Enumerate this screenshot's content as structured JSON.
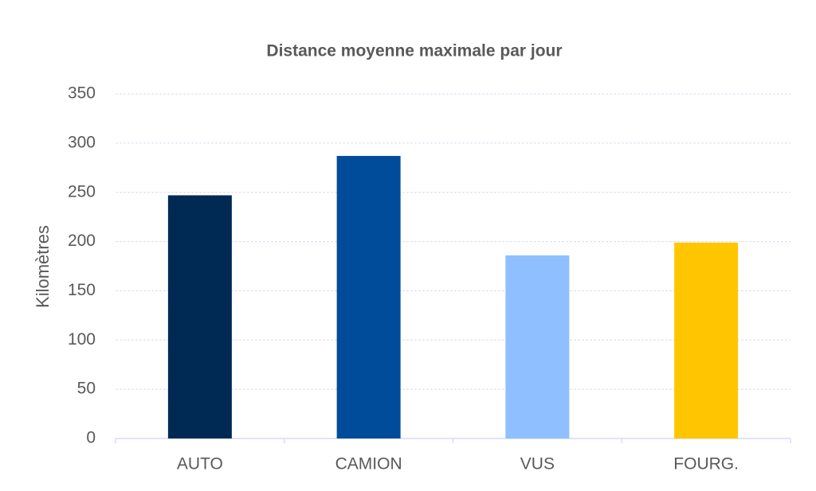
{
  "chart_data": {
    "type": "bar",
    "title": "Distance moyenne maximale par jour",
    "y_label": "Kilomètres",
    "categories": [
      "AUTO",
      "CAMION",
      "VUS",
      "FOURG."
    ],
    "values": [
      247,
      287,
      186,
      199
    ],
    "colors": [
      "#002a54",
      "#004c9b",
      "#8fbfff",
      "#ffc600"
    ],
    "ylim": [
      0,
      350
    ],
    "yticks": [
      0,
      50,
      100,
      150,
      200,
      250,
      300,
      350
    ],
    "grid": true
  }
}
